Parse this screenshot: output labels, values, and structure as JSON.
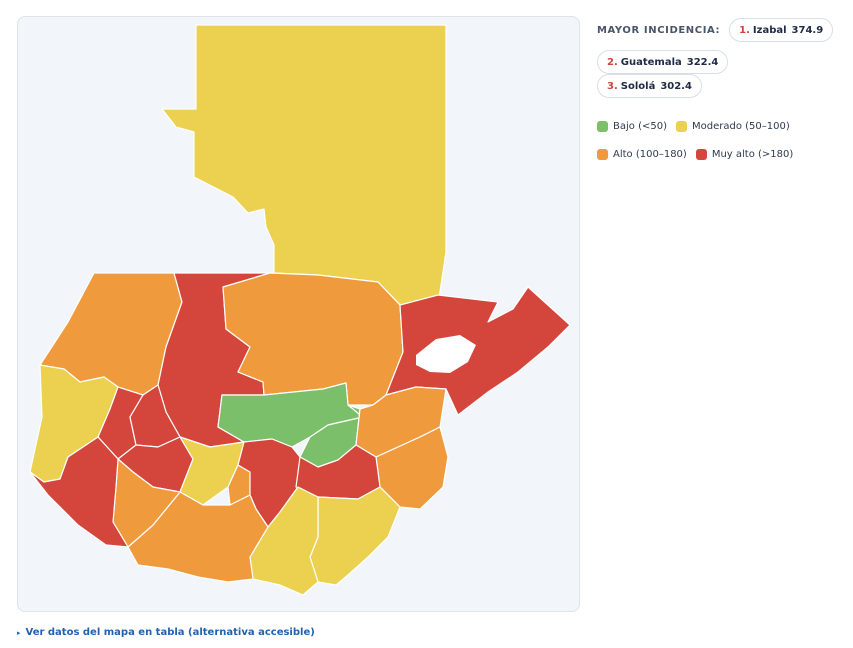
{
  "ranking": {
    "title": "MAYOR INCIDENCIA:",
    "items": [
      {
        "rank": "1.",
        "name": "Izabal",
        "value": "374.9"
      },
      {
        "rank": "2.",
        "name": "Guatemala",
        "value": "322.4"
      },
      {
        "rank": "3.",
        "name": "Sololá",
        "value": "302.4"
      }
    ]
  },
  "legend": {
    "items": [
      {
        "label": "Bajo (<50)",
        "color": "#7bbf6a"
      },
      {
        "label": "Moderado (50–100)",
        "color": "#ecd04f"
      },
      {
        "label": "Alto (100–180)",
        "color": "#ef9a3d"
      },
      {
        "label": "Muy alto (>180)",
        "color": "#d4463b"
      }
    ]
  },
  "map": {
    "regions": [
      {
        "name": "Petén",
        "level": "moderado"
      },
      {
        "name": "Huehuetenango",
        "level": "alto"
      },
      {
        "name": "Quiché",
        "level": "muy-alto"
      },
      {
        "name": "Alta Verapaz",
        "level": "alto"
      },
      {
        "name": "Izabal",
        "level": "muy-alto"
      },
      {
        "name": "Baja Verapaz",
        "level": "bajo"
      },
      {
        "name": "El Progreso",
        "level": "bajo"
      },
      {
        "name": "Zacapa",
        "level": "alto"
      },
      {
        "name": "Chiquimula",
        "level": "alto"
      },
      {
        "name": "San Marcos",
        "level": "moderado"
      },
      {
        "name": "Quetzaltenango",
        "level": "muy-alto"
      },
      {
        "name": "Totonicapán",
        "level": "muy-alto"
      },
      {
        "name": "Sololá",
        "level": "muy-alto"
      },
      {
        "name": "Chimaltenango",
        "level": "moderado"
      },
      {
        "name": "Sacatepéquez",
        "level": "alto"
      },
      {
        "name": "Guatemala",
        "level": "muy-alto"
      },
      {
        "name": "Jalapa",
        "level": "muy-alto"
      },
      {
        "name": "Jutiapa",
        "level": "moderado"
      },
      {
        "name": "Santa Rosa",
        "level": "moderado"
      },
      {
        "name": "Escuintla",
        "level": "alto"
      },
      {
        "name": "Suchitepéquez",
        "level": "alto"
      },
      {
        "name": "Retalhuleu",
        "level": "muy-alto"
      }
    ],
    "level_colors": {
      "bajo": "#7bbf6a",
      "moderado": "#ecd04f",
      "alto": "#ef9a3d",
      "muy-alto": "#d4463b"
    }
  },
  "table_link": {
    "label": "Ver datos del mapa en tabla (alternativa accesible)"
  }
}
